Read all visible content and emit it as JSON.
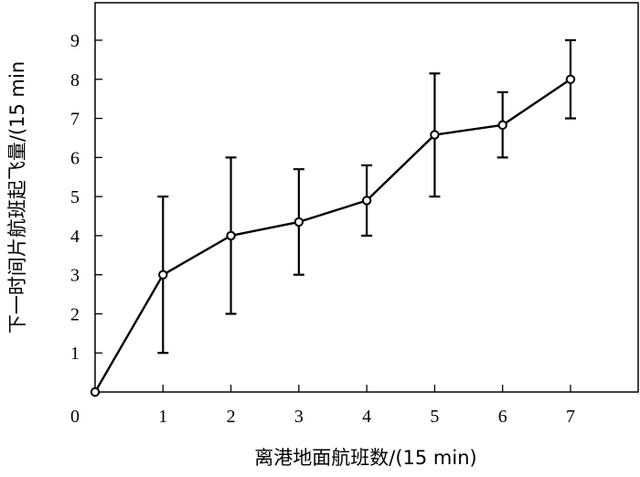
{
  "chart_data": {
    "type": "line",
    "title": "",
    "xlabel": "离港地面航班数/(15 min)",
    "ylabel": "下一时间片航班起飞量/(15 min",
    "x_ticks": [
      "0",
      "1",
      "2",
      "3",
      "4",
      "5",
      "6",
      "7"
    ],
    "y_ticks": [
      "1",
      "2",
      "3",
      "4",
      "5",
      "6",
      "7",
      "8",
      "9"
    ],
    "xlim": [
      0,
      8
    ],
    "ylim": [
      0,
      10
    ],
    "grid": false,
    "series": [
      {
        "x": [
          0,
          1,
          2,
          3,
          4,
          5,
          6,
          7
        ],
        "y": [
          0,
          3,
          4,
          4.35,
          4.9,
          6.58,
          6.83,
          8
        ],
        "err_low": [
          null,
          1,
          2,
          3,
          4,
          5,
          6,
          7
        ],
        "err_high": [
          null,
          5,
          6,
          5.7,
          5.8,
          8.15,
          7.67,
          9
        ],
        "marker": "open-circle",
        "color": "#000000"
      }
    ]
  }
}
